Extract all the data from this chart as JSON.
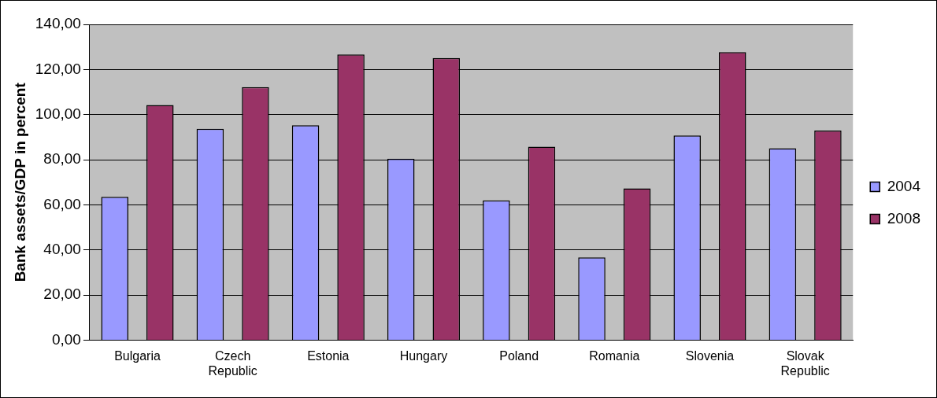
{
  "chart_data": {
    "type": "bar",
    "ylabel": "Bank assets/GDP in percent",
    "categories": [
      "Bulgaria",
      "Czech Republic",
      "Estonia",
      "Hungary",
      "Poland",
      "Romania",
      "Slovenia",
      "Slovak Republic"
    ],
    "series": [
      {
        "name": "2004",
        "color": "#9999ff",
        "values": [
          63.6,
          93.7,
          95.3,
          80.5,
          62.0,
          36.7,
          90.8,
          85.1
        ]
      },
      {
        "name": "2008",
        "color": "#993366",
        "values": [
          104.3,
          112.2,
          126.7,
          125.1,
          85.8,
          67.3,
          127.7,
          92.9
        ]
      }
    ],
    "ylim": [
      0,
      140
    ],
    "yticks": [
      {
        "value": 0,
        "label": "0,00"
      },
      {
        "value": 20,
        "label": "20,00"
      },
      {
        "value": 40,
        "label": "40,00"
      },
      {
        "value": 60,
        "label": "60,00"
      },
      {
        "value": 80,
        "label": "80,00"
      },
      {
        "value": 100,
        "label": "100,00"
      },
      {
        "value": 120,
        "label": "120,00"
      },
      {
        "value": 140,
        "label": "140,00"
      }
    ],
    "grid": "y",
    "legend": "right"
  }
}
